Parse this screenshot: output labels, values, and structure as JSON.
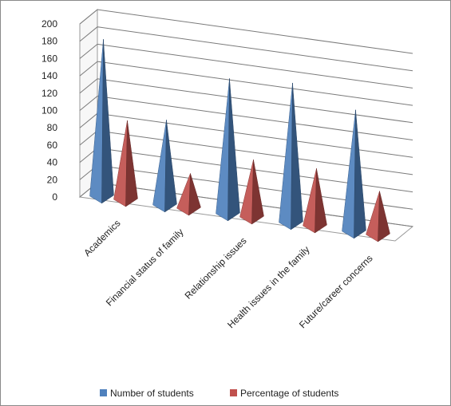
{
  "chart_data": {
    "type": "bar",
    "title": "",
    "xlabel": "",
    "ylabel": "",
    "ylim": [
      0,
      200
    ],
    "yticks": [
      0,
      20,
      40,
      60,
      80,
      100,
      120,
      140,
      160,
      180,
      200
    ],
    "categories": [
      "Academics",
      "Financial status of family",
      "Relationship issues",
      "Health issues in the family",
      "Future/career concerns"
    ],
    "series": [
      {
        "name": "Number of students",
        "values": [
          183,
          100,
          158,
          163,
          142
        ],
        "color": "#4F81BD"
      },
      {
        "name": "Percentage of students",
        "values": [
          93,
          42,
          68,
          68,
          52
        ],
        "color": "#C0504D"
      }
    ],
    "grid": true,
    "legend_position": "bottom",
    "bar_shape": "3d-pyramid"
  }
}
